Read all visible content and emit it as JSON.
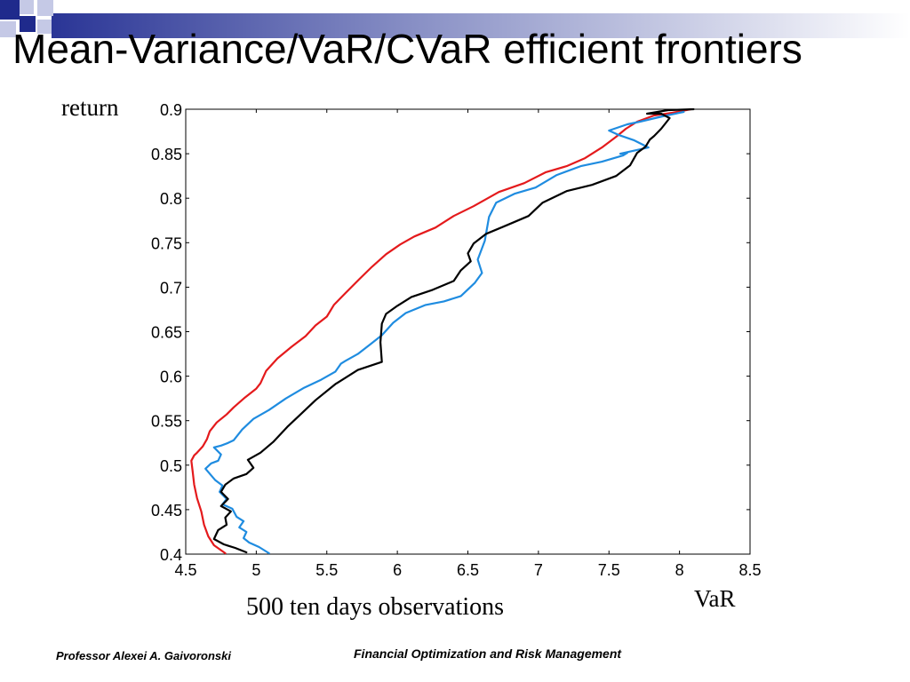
{
  "slide": {
    "title": "Mean-Variance/VaR/CVaR efficient frontiers",
    "note": "500 ten days observations",
    "footer_left": "Professor Alexei A. Gaivoronski",
    "footer_right": "Financial Optimization and Risk Management"
  },
  "colors": {
    "accent_dark": "#1f2a8c",
    "accent_light": "#c5c9e6",
    "red": "#e41a1c",
    "blue": "#1f8ce0",
    "black": "#000000"
  },
  "chart_data": {
    "type": "line",
    "title": "",
    "xlabel": "VaR",
    "ylabel": "return",
    "xlim": [
      4.5,
      8.5
    ],
    "ylim": [
      0.4,
      0.9
    ],
    "xticks": [
      "4.5",
      "5",
      "5.5",
      "6",
      "6.5",
      "7",
      "7.5",
      "8",
      "8.5"
    ],
    "yticks": [
      "0.4",
      "0.45",
      "0.5",
      "0.55",
      "0.6",
      "0.65",
      "0.7",
      "0.75",
      "0.8",
      "0.85",
      "0.9"
    ],
    "grid": false,
    "series": [
      {
        "color": "#e41a1c",
        "x": [
          4.78,
          4.7,
          4.66,
          4.63,
          4.61,
          4.58,
          4.56,
          4.55,
          4.54,
          4.56,
          4.58,
          4.62,
          4.65,
          4.67,
          4.72,
          4.79,
          4.84,
          4.92,
          5.0,
          5.03,
          5.07,
          5.15,
          5.25,
          5.35,
          5.42,
          5.5,
          5.55,
          5.63,
          5.73,
          5.82,
          5.92,
          6.02,
          6.12,
          6.27,
          6.4,
          6.54,
          6.72,
          6.9,
          7.05,
          7.2,
          7.33,
          7.45,
          7.55,
          7.62,
          7.7,
          7.82,
          7.95,
          8.08
        ],
        "y": [
          0.401,
          0.41,
          0.42,
          0.433,
          0.448,
          0.463,
          0.478,
          0.492,
          0.505,
          0.511,
          0.514,
          0.521,
          0.529,
          0.538,
          0.548,
          0.557,
          0.565,
          0.576,
          0.586,
          0.592,
          0.606,
          0.62,
          0.633,
          0.645,
          0.657,
          0.667,
          0.68,
          0.693,
          0.709,
          0.723,
          0.737,
          0.748,
          0.757,
          0.767,
          0.78,
          0.791,
          0.807,
          0.817,
          0.829,
          0.836,
          0.845,
          0.857,
          0.869,
          0.878,
          0.886,
          0.893,
          0.896,
          0.9
        ]
      },
      {
        "color": "#1f8ce0",
        "x": [
          5.09,
          5.02,
          4.95,
          4.91,
          4.93,
          4.88,
          4.91,
          4.86,
          4.83,
          4.76,
          4.79,
          4.74,
          4.76,
          4.71,
          4.64,
          4.68,
          4.73,
          4.75,
          4.7,
          4.75,
          4.8,
          4.84,
          4.9,
          4.98,
          5.09,
          5.21,
          5.34,
          5.46,
          5.56,
          5.6,
          5.63,
          5.72,
          5.81,
          5.89,
          5.97,
          6.06,
          6.2,
          6.33,
          6.45,
          6.55,
          6.6,
          6.57,
          6.62,
          6.65,
          6.7,
          6.83,
          6.98,
          7.13,
          7.3,
          7.45,
          7.6,
          7.63,
          7.58,
          7.78,
          7.68,
          7.57,
          7.5,
          7.63,
          7.72,
          7.8,
          7.88,
          8.03
        ],
        "y": [
          0.401,
          0.408,
          0.413,
          0.418,
          0.425,
          0.43,
          0.437,
          0.442,
          0.451,
          0.456,
          0.462,
          0.47,
          0.477,
          0.483,
          0.496,
          0.502,
          0.505,
          0.512,
          0.52,
          0.522,
          0.525,
          0.528,
          0.54,
          0.552,
          0.562,
          0.575,
          0.587,
          0.596,
          0.605,
          0.614,
          0.617,
          0.625,
          0.636,
          0.646,
          0.66,
          0.671,
          0.68,
          0.684,
          0.69,
          0.705,
          0.716,
          0.731,
          0.752,
          0.779,
          0.795,
          0.805,
          0.812,
          0.826,
          0.836,
          0.841,
          0.848,
          0.851,
          0.85,
          0.857,
          0.865,
          0.871,
          0.876,
          0.883,
          0.886,
          0.889,
          0.892,
          0.897
        ]
      },
      {
        "color": "#000000",
        "x": [
          4.93,
          4.85,
          4.77,
          4.7,
          4.73,
          4.79,
          4.78,
          4.82,
          4.75,
          4.8,
          4.75,
          4.78,
          4.84,
          4.93,
          4.98,
          4.94,
          5.03,
          5.12,
          5.22,
          5.32,
          5.42,
          5.56,
          5.72,
          5.89,
          5.88,
          5.89,
          5.92,
          6.0,
          6.1,
          6.25,
          6.4,
          6.45,
          6.52,
          6.5,
          6.54,
          6.63,
          6.78,
          6.93,
          7.03,
          7.2,
          7.38,
          7.55,
          7.65,
          7.7,
          7.76,
          7.79,
          7.82,
          7.87,
          7.93,
          7.87,
          7.77,
          7.92,
          8.1
        ],
        "y": [
          0.402,
          0.407,
          0.411,
          0.417,
          0.427,
          0.433,
          0.441,
          0.448,
          0.454,
          0.462,
          0.47,
          0.478,
          0.485,
          0.49,
          0.497,
          0.506,
          0.514,
          0.526,
          0.543,
          0.558,
          0.573,
          0.591,
          0.607,
          0.616,
          0.638,
          0.659,
          0.67,
          0.679,
          0.689,
          0.697,
          0.707,
          0.719,
          0.729,
          0.738,
          0.749,
          0.76,
          0.77,
          0.78,
          0.795,
          0.808,
          0.815,
          0.825,
          0.837,
          0.851,
          0.858,
          0.866,
          0.87,
          0.878,
          0.89,
          0.895,
          0.895,
          0.899,
          0.9
        ]
      }
    ]
  }
}
